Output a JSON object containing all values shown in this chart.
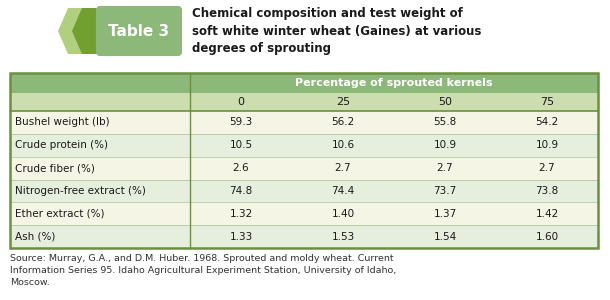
{
  "title_label": "Table 3",
  "title_text": "Chemical composition and test weight of\nsoft white winter wheat (Gaines) at various\ndegrees of sprouting",
  "header_label": "Percentage of sprouted kernels",
  "col_headers": [
    "0",
    "25",
    "50",
    "75"
  ],
  "row_labels": [
    "Bushel weight (lb)",
    "Crude protein (%)",
    "Crude fiber (%)",
    "Nitrogen-free extract (%)",
    "Ether extract (%)",
    "Ash (%)"
  ],
  "table_data": [
    [
      "59.3",
      "56.2",
      "55.8",
      "54.2"
    ],
    [
      "10.5",
      "10.6",
      "10.9",
      "10.9"
    ],
    [
      "2.6",
      "2.7",
      "2.7",
      "2.7"
    ],
    [
      "74.8",
      "74.4",
      "73.7",
      "73.8"
    ],
    [
      "1.32",
      "1.40",
      "1.37",
      "1.42"
    ],
    [
      "1.33",
      "1.53",
      "1.54",
      "1.60"
    ]
  ],
  "source_text": "Source: Murray, G.A., and D.M. Huber. 1968. Sprouted and moldy wheat. Current\nInformation Series 95. Idaho Agricultural Experiment Station, University of Idaho,\nMoscow.",
  "header_bg": "#8cb87a",
  "subheader_bg": "#ccddb0",
  "row_bg_light": "#f5f5e6",
  "row_bg_mid": "#e6eedd",
  "table_border": "#6a9040",
  "text_color": "#1a1a1a",
  "label_bg": "#8cb87a",
  "chevron_light": "#b0d080",
  "chevron_dark": "#72a030",
  "badge_border": "#8cb87a",
  "white": "#ffffff",
  "bg_color": "#ffffff",
  "source_color": "#333333"
}
